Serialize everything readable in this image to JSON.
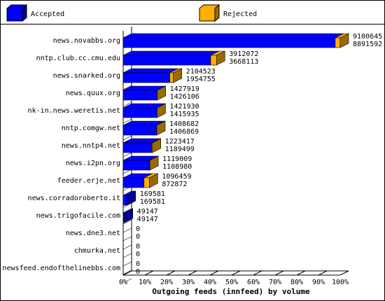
{
  "chart_data": {
    "type": "bar3d",
    "x_label": "Outgoing feeds (innfeed) by volume",
    "categories": [
      "news.novabbs.org",
      "nntp.club.cc.cmu.edu",
      "news.snarked.org",
      "news.quux.org",
      "nk-in.news.weretis.net",
      "nntp.comgw.net",
      "news.nntp4.net",
      "news.i2pn.org",
      "feeder.erje.net",
      "news.corradoroberto.it",
      "news.trigofacile.com",
      "news.dne3.net",
      "chmurka.net",
      "newsfeed.endofthelinebbs.com"
    ],
    "totals": [
      9100645,
      3912072,
      2104523,
      1427919,
      1421930,
      1408682,
      1223417,
      1119009,
      1096459,
      169581,
      49147,
      0,
      0,
      0
    ],
    "series": [
      {
        "name": "Accepted",
        "color": "#0000ff",
        "values": [
          8891592,
          3668113,
          1954755,
          1426106,
          1415935,
          1406869,
          1189499,
          1108980,
          872872,
          169581,
          49147,
          0,
          0,
          0
        ]
      }
    ],
    "rejected": {
      "name": "Rejected",
      "color": "#ffb000"
    },
    "xticks": [
      {
        "value": 0,
        "label": "0%"
      },
      {
        "value": 10,
        "label": "10%"
      },
      {
        "value": 20,
        "label": "20%"
      },
      {
        "value": 30,
        "label": "30%"
      },
      {
        "value": 40,
        "label": "40%"
      },
      {
        "value": 50,
        "label": "50%"
      },
      {
        "value": 60,
        "label": "60%"
      },
      {
        "value": 70,
        "label": "70%"
      },
      {
        "value": 80,
        "label": "80%"
      },
      {
        "value": 90,
        "label": "90%"
      },
      {
        "value": 100,
        "label": "100%"
      }
    ],
    "xlim": [
      0,
      100
    ]
  }
}
